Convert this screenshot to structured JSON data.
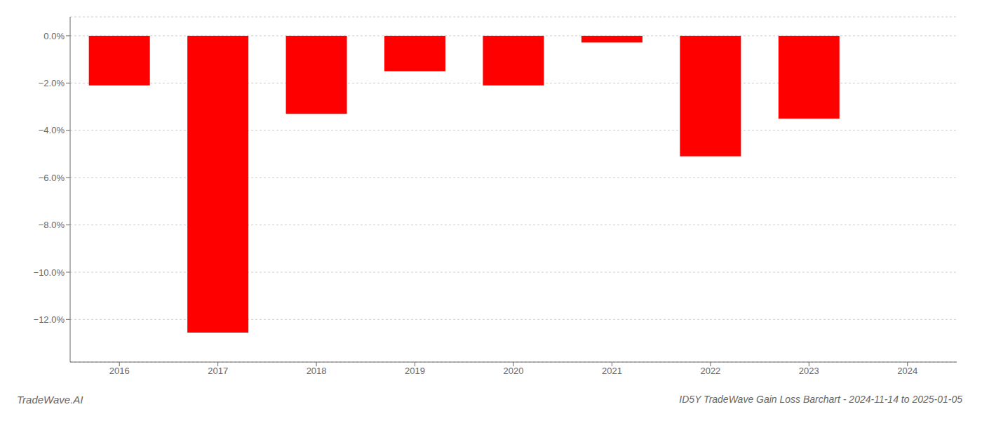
{
  "chart_data": {
    "type": "bar",
    "title": "ID5Y TradeWave Gain Loss Barchart - 2024-11-14 to 2025-01-05",
    "annotations": [
      "TradeWave.AI"
    ],
    "categories": [
      "2016",
      "2017",
      "2018",
      "2019",
      "2020",
      "2021",
      "2022",
      "2023",
      "2024"
    ],
    "values": [
      -2.1,
      -12.55,
      -3.3,
      -1.5,
      -2.1,
      -0.28,
      -5.1,
      -3.5,
      0.0
    ],
    "color": "#ff0000",
    "ylim": [
      -13.8,
      0.8
    ],
    "yticks": [
      {
        "value": 0.0,
        "label": "0.0%"
      },
      {
        "value": -2.0,
        "label": "−2.0%"
      },
      {
        "value": -4.0,
        "label": "−4.0%"
      },
      {
        "value": -6.0,
        "label": "−6.0%"
      },
      {
        "value": -8.0,
        "label": "−8.0%"
      },
      {
        "value": -10.0,
        "label": "−10.0%"
      },
      {
        "value": -12.0,
        "label": "−12.0%"
      }
    ],
    "grid": true
  }
}
